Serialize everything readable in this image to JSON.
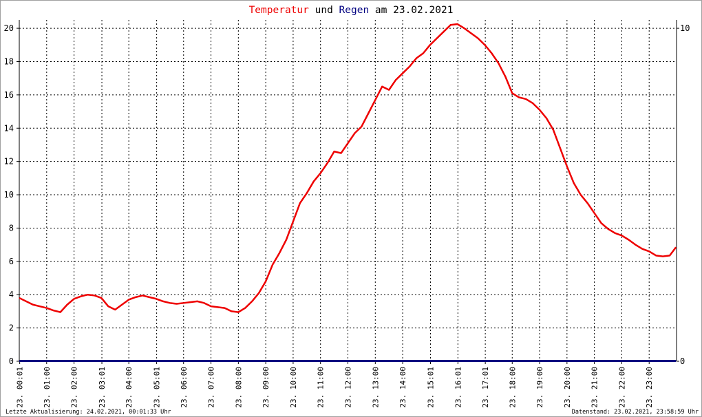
{
  "title": {
    "part1": "Temperatur",
    "part2": " und ",
    "part3": "Regen",
    "part4": " am 23.02.2021",
    "color_temp": "#ee0000",
    "color_rain": "#000080",
    "color_text": "#000000"
  },
  "footer": {
    "left": "Letzte Aktualisierung: 24.02.2021, 00:01:33 Uhr",
    "right": "Datenstand: 23.02.2021, 23:58:59 Uhr"
  },
  "chart_data": {
    "type": "line",
    "title": "Temperatur und Regen am 23.02.2021",
    "xlabel": "",
    "ylabel": "",
    "x_ticks": [
      "23. 00:01",
      "23. 01:00",
      "23. 02:00",
      "23. 03:01",
      "23. 04:00",
      "23. 05:01",
      "23. 06:00",
      "23. 07:00",
      "23. 08:00",
      "23. 09:00",
      "23. 10:00",
      "23. 11:00",
      "23. 12:00",
      "23. 13:00",
      "23. 14:00",
      "23. 15:01",
      "23. 16:01",
      "23. 17:01",
      "23. 18:00",
      "23. 19:00",
      "23. 20:00",
      "23. 21:00",
      "23. 22:00",
      "23. 23:00"
    ],
    "x_tick_hours": [
      0.0167,
      1,
      2,
      3.0167,
      4,
      5.0167,
      6,
      7,
      8,
      9,
      10,
      11,
      12,
      13,
      14,
      15.0167,
      16.0167,
      17.0167,
      18,
      19,
      20,
      21,
      22,
      23
    ],
    "xlim_hours": [
      0,
      24
    ],
    "ylim_left": [
      0,
      20.5
    ],
    "y_ticks_left": [
      0,
      2,
      4,
      6,
      8,
      10,
      12,
      14,
      16,
      18,
      20
    ],
    "ylim_right": [
      0,
      10.25
    ],
    "y_ticks_right": [
      0,
      10
    ],
    "grid": true,
    "series": [
      {
        "name": "Temperatur",
        "axis": "left",
        "color": "#ee0000",
        "x": [
          0,
          0.25,
          0.5,
          0.75,
          1,
          1.25,
          1.5,
          1.75,
          2,
          2.25,
          2.5,
          2.75,
          3,
          3.25,
          3.5,
          3.75,
          4,
          4.25,
          4.5,
          4.75,
          5,
          5.25,
          5.5,
          5.75,
          6,
          6.25,
          6.5,
          6.75,
          7,
          7.25,
          7.5,
          7.75,
          8,
          8.25,
          8.5,
          8.75,
          9,
          9.25,
          9.5,
          9.75,
          10,
          10.25,
          10.5,
          10.75,
          11,
          11.25,
          11.5,
          11.75,
          12,
          12.25,
          12.5,
          12.75,
          13,
          13.25,
          13.5,
          13.75,
          14,
          14.25,
          14.5,
          14.75,
          15,
          15.25,
          15.5,
          15.75,
          16,
          16.25,
          16.5,
          16.75,
          17,
          17.25,
          17.5,
          17.75,
          18,
          18.25,
          18.5,
          18.75,
          19,
          19.25,
          19.5,
          19.75,
          20,
          20.25,
          20.5,
          20.75,
          21,
          21.25,
          21.5,
          21.75,
          22,
          22.25,
          22.5,
          22.75,
          23,
          23.25,
          23.5,
          23.75,
          23.98
        ],
        "y": [
          3.8,
          3.6,
          3.4,
          3.3,
          3.2,
          3.05,
          2.95,
          3.4,
          3.75,
          3.9,
          4.0,
          3.95,
          3.8,
          3.3,
          3.1,
          3.4,
          3.7,
          3.85,
          3.95,
          3.85,
          3.75,
          3.6,
          3.5,
          3.45,
          3.5,
          3.55,
          3.6,
          3.5,
          3.3,
          3.25,
          3.2,
          3.0,
          2.95,
          3.2,
          3.6,
          4.1,
          4.8,
          5.8,
          6.5,
          7.3,
          8.4,
          9.5,
          10.1,
          10.8,
          11.3,
          11.9,
          12.6,
          12.5,
          13.1,
          13.7,
          14.1,
          14.9,
          15.7,
          16.5,
          16.3,
          16.9,
          17.3,
          17.7,
          18.2,
          18.5,
          19.0,
          19.4,
          19.8,
          20.2,
          20.25,
          20.0,
          19.7,
          19.4,
          19.0,
          18.5,
          17.9,
          17.1,
          16.1,
          15.85,
          15.75,
          15.5,
          15.1,
          14.6,
          13.9,
          12.8,
          11.7,
          10.7,
          10.0,
          9.5,
          8.9,
          8.3,
          7.95,
          7.7,
          7.55,
          7.3,
          7.0,
          6.75,
          6.6,
          6.35,
          6.3,
          6.35,
          6.85
        ]
      },
      {
        "name": "Regen",
        "axis": "right",
        "color": "#000080",
        "x": [
          0,
          23.98
        ],
        "y": [
          0,
          0
        ]
      }
    ]
  }
}
